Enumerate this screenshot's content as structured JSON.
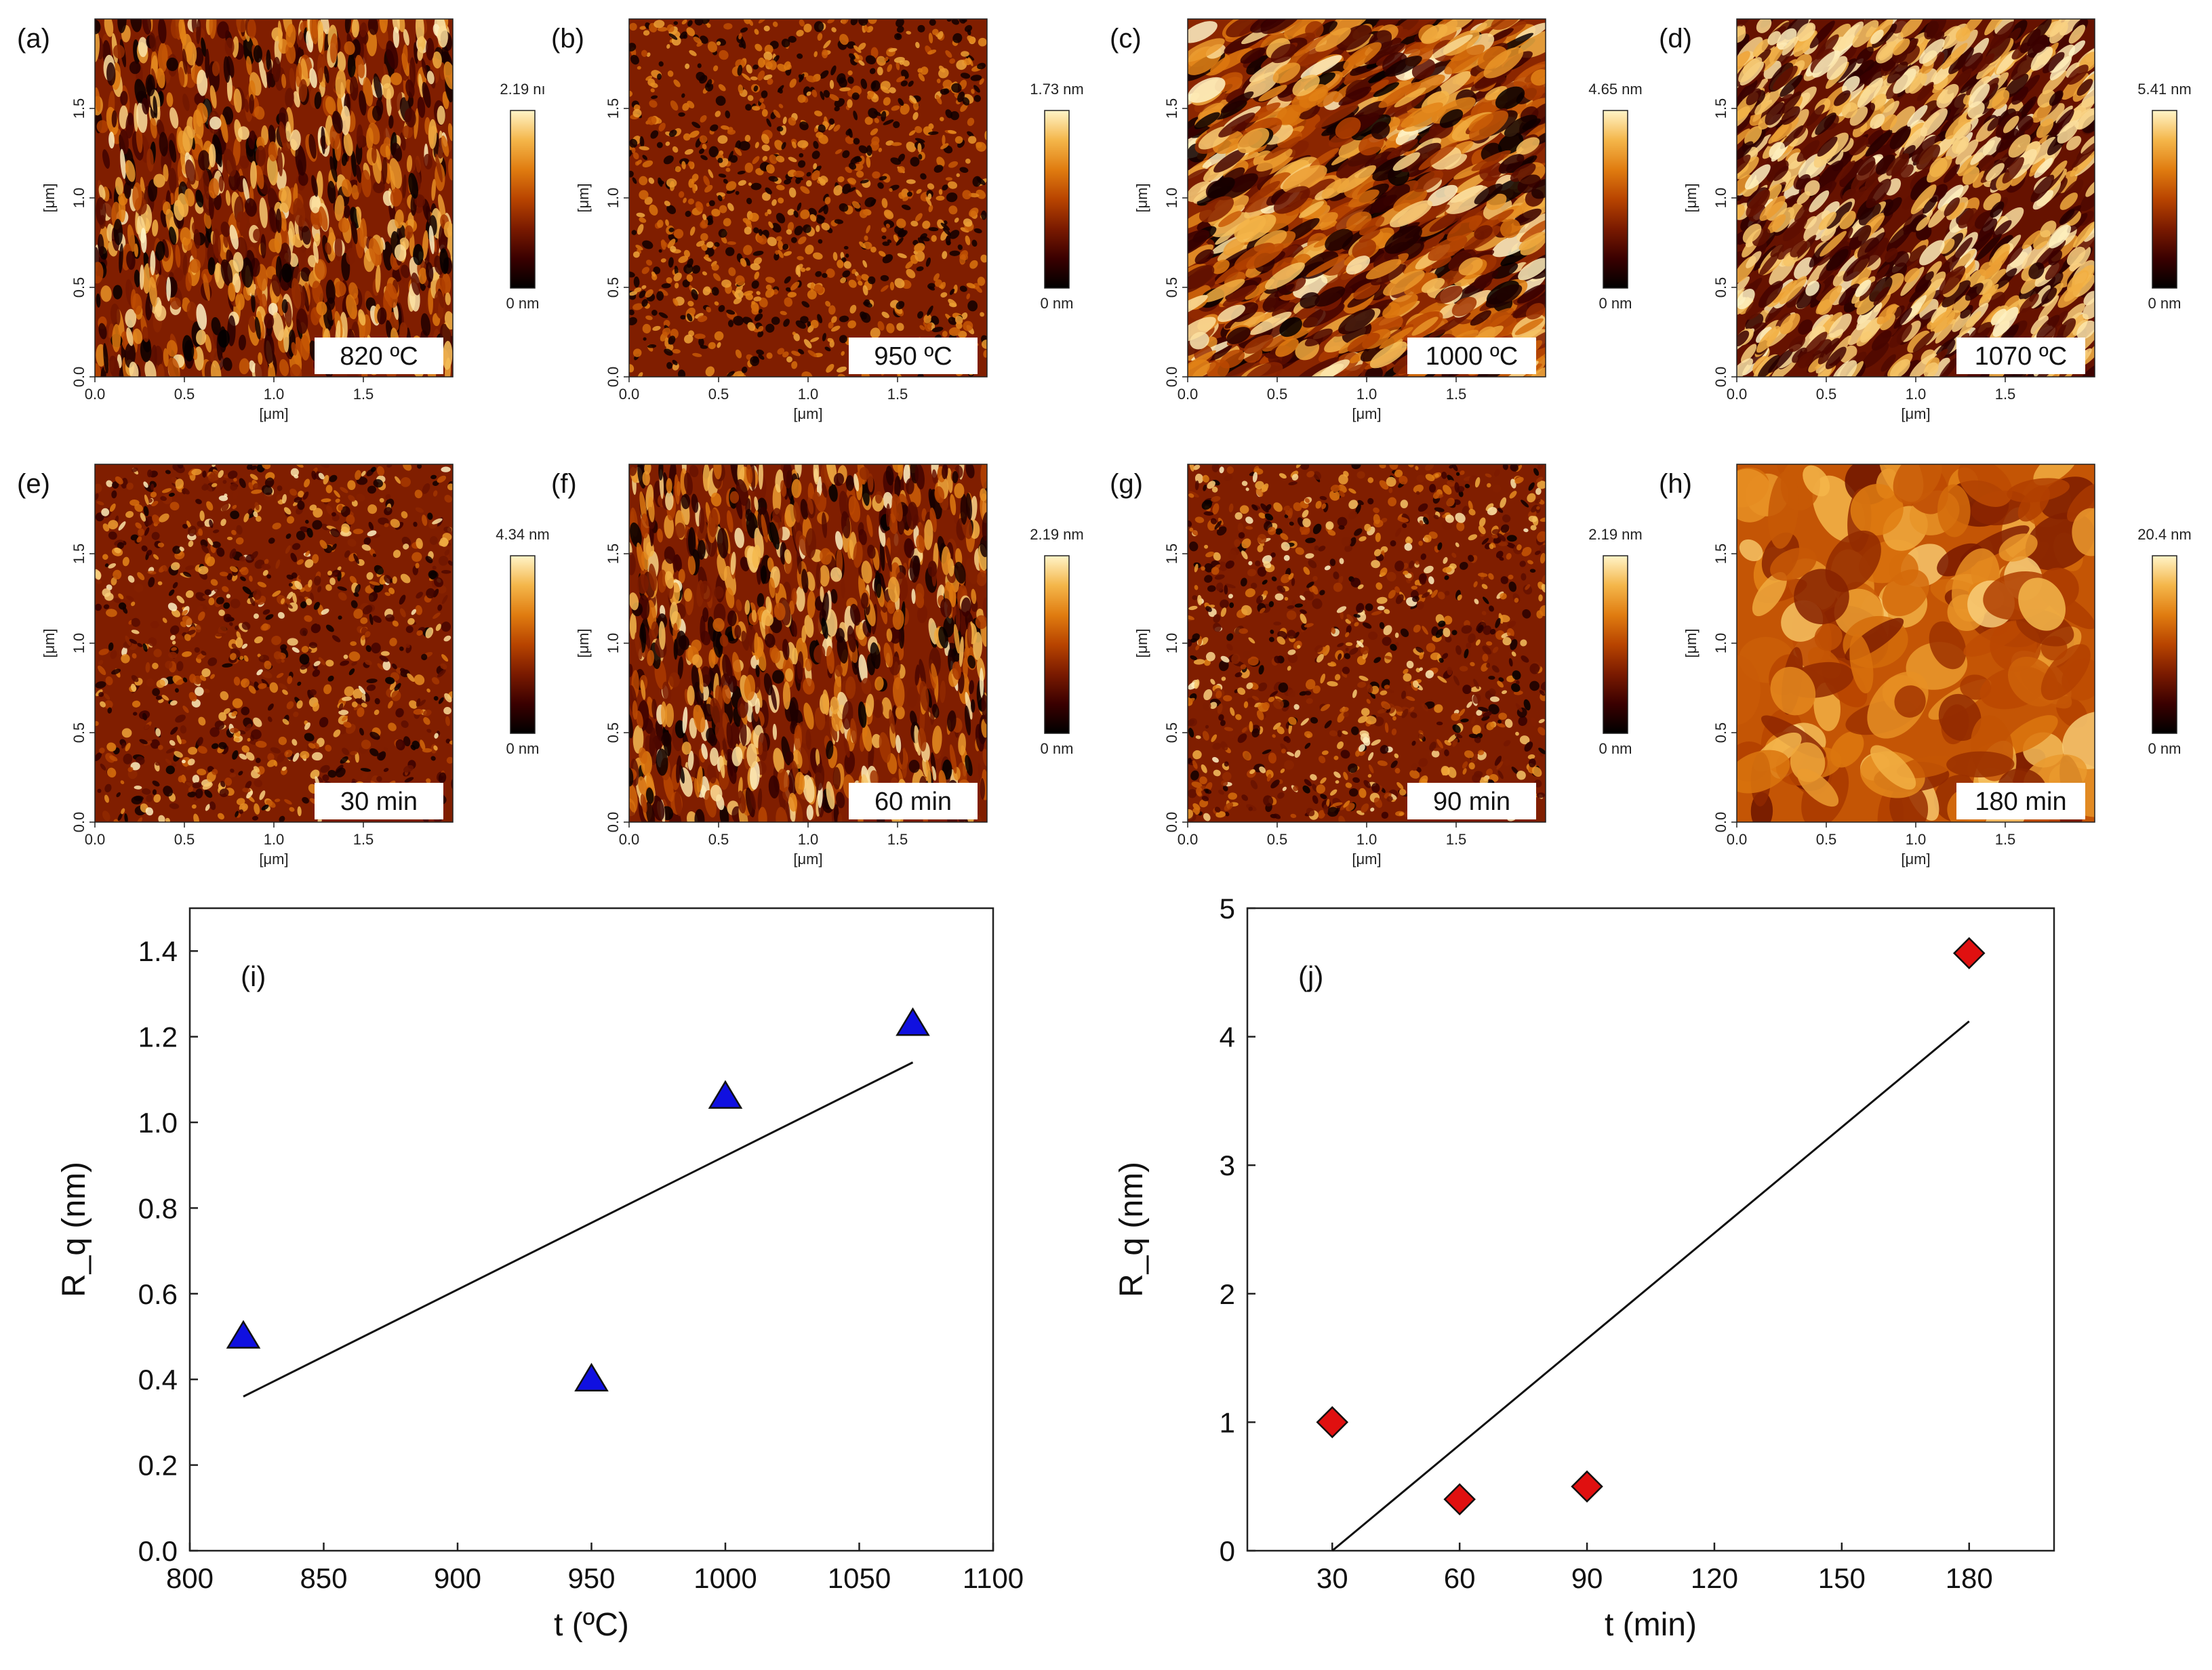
{
  "figure": {
    "afm_axis_unit": "[μm]",
    "afm_ticks": [
      "0.0",
      "0.5",
      "1.0",
      "1.5"
    ],
    "afm_tick_values": [
      0.0,
      0.5,
      1.0,
      1.5
    ],
    "afm_scan_size_um": 2.0,
    "panels": [
      {
        "letter": "(a)",
        "condition": "820 ºC",
        "scale_max": "2.19 nı",
        "scale_min": "0 nm",
        "texture": "streaky"
      },
      {
        "letter": "(b)",
        "condition": "950 ºC",
        "scale_max": "1.73 nm",
        "scale_min": "0 nm",
        "texture": "pitted"
      },
      {
        "letter": "(c)",
        "condition": "1000 ºC",
        "scale_max": "4.65 nm",
        "scale_min": "0 nm",
        "texture": "diagonal"
      },
      {
        "letter": "(d)",
        "condition": "1070 ºC",
        "scale_max": "5.41 nm",
        "scale_min": "0 nm",
        "texture": "grains"
      },
      {
        "letter": "(e)",
        "condition": "30 min",
        "scale_max": "4.34 nm",
        "scale_min": "0 nm",
        "texture": "fine"
      },
      {
        "letter": "(f)",
        "condition": "60 min",
        "scale_max": "2.19 nm",
        "scale_min": "0 nm",
        "texture": "streaky"
      },
      {
        "letter": "(g)",
        "condition": "90 min",
        "scale_max": "2.19 nm",
        "scale_min": "0 nm",
        "texture": "fine"
      },
      {
        "letter": "(h)",
        "condition": "180 min",
        "scale_max": "20.4 nm",
        "scale_min": "0 nm",
        "texture": "blobs"
      }
    ],
    "colormap": [
      "#000000",
      "#3a0000",
      "#7a1a00",
      "#b84400",
      "#e07c10",
      "#f4b64a",
      "#fff4c8"
    ]
  },
  "chart_data": [
    {
      "type": "scatter",
      "panel_label": "(i)",
      "xlabel": "t (ºC)",
      "ylabel": "R_q (nm)",
      "xlim": [
        800,
        1100
      ],
      "ylim": [
        0.0,
        1.5
      ],
      "x_ticks": [
        800,
        850,
        900,
        950,
        1000,
        1050,
        1100
      ],
      "y_ticks": [
        0.0,
        0.2,
        0.4,
        0.6,
        0.8,
        1.0,
        1.2,
        1.4
      ],
      "y_tick_labels": [
        "0.0",
        "0.2",
        "0.4",
        "0.6",
        "0.8",
        "1.0",
        "1.2",
        "1.4"
      ],
      "marker": "triangle",
      "marker_color": "#1010e0",
      "points": [
        {
          "x": 820,
          "y": 0.5
        },
        {
          "x": 950,
          "y": 0.4
        },
        {
          "x": 1000,
          "y": 1.06
        },
        {
          "x": 1070,
          "y": 1.23
        }
      ],
      "fit_line": [
        {
          "x": 820,
          "y": 0.36
        },
        {
          "x": 1070,
          "y": 1.14
        }
      ]
    },
    {
      "type": "scatter",
      "panel_label": "(j)",
      "xlabel": "t (min)",
      "ylabel": "R_q (nm)",
      "xlim": [
        10,
        200
      ],
      "ylim": [
        0,
        5
      ],
      "x_ticks": [
        30,
        60,
        90,
        120,
        150,
        180
      ],
      "y_ticks": [
        0,
        1,
        2,
        3,
        4,
        5
      ],
      "y_tick_labels": [
        "0",
        "1",
        "2",
        "3",
        "4",
        "5"
      ],
      "marker": "diamond",
      "marker_color": "#e01010",
      "points": [
        {
          "x": 30,
          "y": 1.0
        },
        {
          "x": 60,
          "y": 0.4
        },
        {
          "x": 90,
          "y": 0.5
        },
        {
          "x": 180,
          "y": 4.65
        }
      ],
      "fit_line": [
        {
          "x": 30,
          "y": 0.0
        },
        {
          "x": 180,
          "y": 4.12
        }
      ]
    }
  ]
}
